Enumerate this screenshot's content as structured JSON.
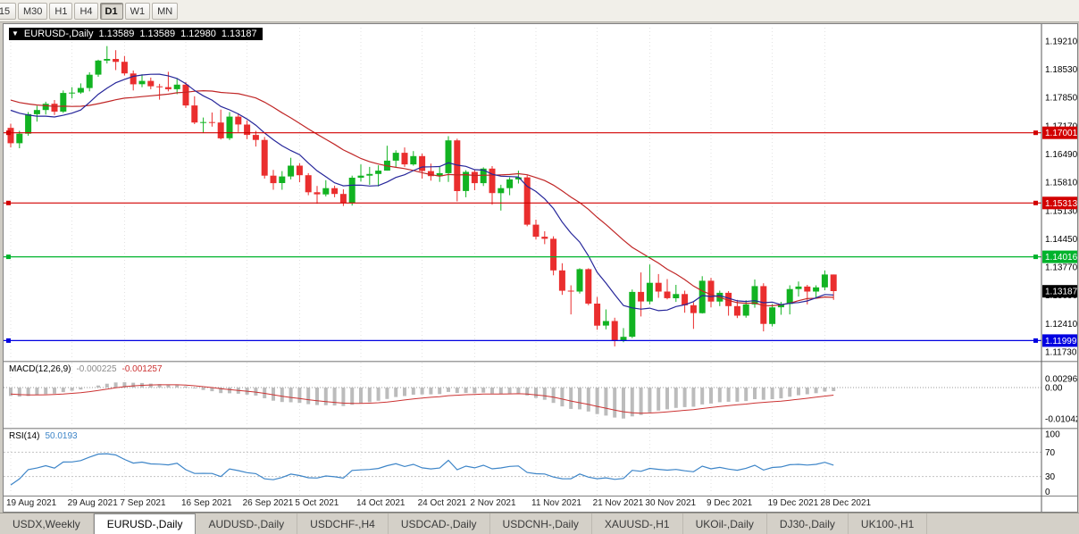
{
  "toolbar": {
    "timeframes": [
      {
        "label": "15",
        "active": false
      },
      {
        "label": "M30",
        "active": false
      },
      {
        "label": "H1",
        "active": false
      },
      {
        "label": "H4",
        "active": false
      },
      {
        "label": "D1",
        "active": true
      },
      {
        "label": "W1",
        "active": false
      },
      {
        "label": "MN",
        "active": false
      }
    ]
  },
  "chart_header": {
    "symbol": "EURUSD-,Daily",
    "open": "1.13589",
    "high": "1.13589",
    "low": "1.12980",
    "close": "1.13187"
  },
  "macd": {
    "name": "MACD(12,26,9)",
    "value_main": "-0.000225",
    "value_signal": "-0.001257",
    "axis_labels": [
      {
        "text": "0.002966",
        "value": 0.002966
      },
      {
        "text": "0.00",
        "value": 0
      },
      {
        "text": "-0.01042",
        "value": -0.01042
      }
    ]
  },
  "rsi": {
    "name": "RSI(14)",
    "value": "50.0193",
    "axis_labels": [
      {
        "text": "100",
        "value": 100
      },
      {
        "text": "70",
        "value": 70
      },
      {
        "text": "30",
        "value": 30
      },
      {
        "text": "0",
        "value": 0
      }
    ],
    "levels": [
      70,
      30
    ]
  },
  "colors": {
    "candle_up": "#12b322",
    "candle_down": "#ea2e2e",
    "ma_fast": "#26269a",
    "ma_slow": "#c02626",
    "macd_hist": "#bcbcbc",
    "macd_signal": "#cc3333",
    "rsi_line": "#3d85c8",
    "grid": "#e2e2e2"
  },
  "chart_data": {
    "type": "candlestick",
    "symbol": "EURUSD-,Daily",
    "y_range": [
      1.11535,
      1.19532
    ],
    "y_axis_labels": [
      "1.19210",
      "1.18530",
      "1.17850",
      "1.17170",
      "1.16490",
      "1.15810",
      "1.15130",
      "1.14450",
      "1.13770",
      "1.13090",
      "1.12410",
      "1.11730"
    ],
    "x_tick_labels": [
      "19 Aug 2021",
      "29 Aug 2021",
      "7 Sep 2021",
      "16 Sep 2021",
      "26 Sep 2021",
      "5 Oct 2021",
      "14 Oct 2021",
      "24 Oct 2021",
      "2 Nov 2021",
      "11 Nov 2021",
      "21 Nov 2021",
      "30 Nov 2021",
      "9 Dec 2021",
      "19 Dec 2021",
      "28 Dec 2021"
    ],
    "x_tick_indices": [
      0,
      7,
      13,
      20,
      27,
      33,
      40,
      47,
      53,
      60,
      67,
      73,
      80,
      87,
      93
    ],
    "levels": [
      {
        "value": 1.17001,
        "label": "1.17001",
        "color": "#d20000"
      },
      {
        "value": 1.15313,
        "label": "1.15313",
        "color": "#d20000"
      },
      {
        "value": 1.14016,
        "label": "1.14016",
        "color": "#00b32c"
      },
      {
        "value": 1.11999,
        "label": "1.11999",
        "color": "#0000e1"
      }
    ],
    "current_price": {
      "value": 1.13187,
      "label": "1.13187",
      "color": "#000000"
    },
    "ma_periods": {
      "fast": 9,
      "slow": 21
    },
    "pre_closes": [
      1.1872,
      1.1866,
      1.1858,
      1.1873,
      1.1862,
      1.185,
      1.1839,
      1.1835,
      1.183,
      1.182,
      1.1812,
      1.1806,
      1.1821,
      1.1818,
      1.181,
      1.18,
      1.1792,
      1.1785,
      1.1807,
      1.1802,
      1.1795,
      1.1788,
      1.178,
      1.177,
      1.1762,
      1.1785,
      1.1779,
      1.1771,
      1.1768,
      1.176,
      1.175,
      1.174
    ],
    "candles_ohlc": [
      [
        1.1712,
        1.1722,
        1.1665,
        1.1675
      ],
      [
        1.1675,
        1.1705,
        1.1663,
        1.1698
      ],
      [
        1.1698,
        1.175,
        1.1693,
        1.1745
      ],
      [
        1.1745,
        1.1765,
        1.1727,
        1.1755
      ],
      [
        1.1755,
        1.1775,
        1.1744,
        1.177
      ],
      [
        1.177,
        1.1779,
        1.1743,
        1.1751
      ],
      [
        1.1751,
        1.1802,
        1.1748,
        1.1796
      ],
      [
        1.1796,
        1.181,
        1.1783,
        1.1797
      ],
      [
        1.1797,
        1.1819,
        1.1794,
        1.1808
      ],
      [
        1.1808,
        1.1846,
        1.18,
        1.184
      ],
      [
        1.184,
        1.1876,
        1.1835,
        1.1874
      ],
      [
        1.1874,
        1.1909,
        1.1867,
        1.1878
      ],
      [
        1.1878,
        1.1899,
        1.1851,
        1.1871
      ],
      [
        1.1871,
        1.1885,
        1.1838,
        1.1843
      ],
      [
        1.1843,
        1.185,
        1.1802,
        1.1817
      ],
      [
        1.1817,
        1.1841,
        1.181,
        1.1825
      ],
      [
        1.1825,
        1.1833,
        1.1805,
        1.1812
      ],
      [
        1.1812,
        1.1818,
        1.178,
        1.181
      ],
      [
        1.181,
        1.1847,
        1.18,
        1.1805
      ],
      [
        1.1805,
        1.1832,
        1.1793,
        1.1816
      ],
      [
        1.1816,
        1.1822,
        1.176,
        1.1766
      ],
      [
        1.1766,
        1.1788,
        1.1721,
        1.1725
      ],
      [
        1.1725,
        1.1737,
        1.17,
        1.1726
      ],
      [
        1.1726,
        1.1749,
        1.1715,
        1.1725
      ],
      [
        1.1725,
        1.1756,
        1.1684,
        1.1687
      ],
      [
        1.1687,
        1.175,
        1.1683,
        1.1739
      ],
      [
        1.1739,
        1.1747,
        1.1702,
        1.172
      ],
      [
        1.172,
        1.173,
        1.1685,
        1.1695
      ],
      [
        1.1695,
        1.1705,
        1.1667,
        1.1683
      ],
      [
        1.1683,
        1.169,
        1.159,
        1.1597
      ],
      [
        1.1597,
        1.1611,
        1.1563,
        1.1579
      ],
      [
        1.1579,
        1.1608,
        1.1563,
        1.1595
      ],
      [
        1.1595,
        1.164,
        1.1588,
        1.1621
      ],
      [
        1.1621,
        1.1627,
        1.1581,
        1.1598
      ],
      [
        1.1598,
        1.1603,
        1.155,
        1.1557
      ],
      [
        1.1557,
        1.1572,
        1.1529,
        1.1552
      ],
      [
        1.1552,
        1.1586,
        1.1547,
        1.1567
      ],
      [
        1.1567,
        1.1573,
        1.1545,
        1.1553
      ],
      [
        1.1553,
        1.1564,
        1.1524,
        1.1531
      ],
      [
        1.1531,
        1.1597,
        1.1525,
        1.1592
      ],
      [
        1.1592,
        1.1624,
        1.1583,
        1.1597
      ],
      [
        1.1597,
        1.1618,
        1.1575,
        1.1601
      ],
      [
        1.1601,
        1.1622,
        1.1571,
        1.1609
      ],
      [
        1.1609,
        1.1669,
        1.1609,
        1.1633
      ],
      [
        1.1633,
        1.1658,
        1.1617,
        1.1652
      ],
      [
        1.1652,
        1.1665,
        1.1618,
        1.1624
      ],
      [
        1.1624,
        1.1656,
        1.1621,
        1.1644
      ],
      [
        1.1644,
        1.165,
        1.159,
        1.1608
      ],
      [
        1.1608,
        1.1626,
        1.1585,
        1.1596
      ],
      [
        1.1596,
        1.1618,
        1.1582,
        1.1603
      ],
      [
        1.1603,
        1.1692,
        1.1582,
        1.1682
      ],
      [
        1.1682,
        1.1686,
        1.1535,
        1.156
      ],
      [
        1.156,
        1.161,
        1.1545,
        1.1606
      ],
      [
        1.1606,
        1.1612,
        1.1562,
        1.1579
      ],
      [
        1.1579,
        1.1617,
        1.1572,
        1.1614
      ],
      [
        1.1614,
        1.162,
        1.1527,
        1.1555
      ],
      [
        1.1555,
        1.1575,
        1.1513,
        1.1567
      ],
      [
        1.1567,
        1.1593,
        1.155,
        1.1588
      ],
      [
        1.1588,
        1.1609,
        1.1578,
        1.1593
      ],
      [
        1.1593,
        1.1598,
        1.1475,
        1.1479
      ],
      [
        1.1479,
        1.1491,
        1.1443,
        1.145
      ],
      [
        1.145,
        1.1463,
        1.1432,
        1.1445
      ],
      [
        1.1445,
        1.1451,
        1.1357,
        1.1369
      ],
      [
        1.1369,
        1.1386,
        1.131,
        1.132
      ],
      [
        1.132,
        1.1333,
        1.1263,
        1.1318
      ],
      [
        1.1318,
        1.1374,
        1.1313,
        1.1372
      ],
      [
        1.1372,
        1.1374,
        1.1285,
        1.1289
      ],
      [
        1.1289,
        1.1305,
        1.1226,
        1.1236
      ],
      [
        1.1236,
        1.1275,
        1.1227,
        1.1247
      ],
      [
        1.1247,
        1.1255,
        1.1186,
        1.1199
      ],
      [
        1.1199,
        1.123,
        1.1196,
        1.1209
      ],
      [
        1.1209,
        1.1323,
        1.1206,
        1.1317
      ],
      [
        1.1317,
        1.1364,
        1.1258,
        1.1294
      ],
      [
        1.1294,
        1.1383,
        1.1287,
        1.1339
      ],
      [
        1.1339,
        1.136,
        1.1303,
        1.1318
      ],
      [
        1.1318,
        1.1348,
        1.1299,
        1.1302
      ],
      [
        1.1302,
        1.1334,
        1.1293,
        1.1312
      ],
      [
        1.1312,
        1.132,
        1.1267,
        1.1285
      ],
      [
        1.1285,
        1.1292,
        1.1228,
        1.1266
      ],
      [
        1.1266,
        1.1355,
        1.1265,
        1.1344
      ],
      [
        1.1344,
        1.1351,
        1.128,
        1.1294
      ],
      [
        1.1294,
        1.132,
        1.1283,
        1.1315
      ],
      [
        1.1315,
        1.1319,
        1.126,
        1.1283
      ],
      [
        1.1283,
        1.1298,
        1.1254,
        1.126
      ],
      [
        1.126,
        1.1297,
        1.1255,
        1.1287
      ],
      [
        1.1287,
        1.1347,
        1.1279,
        1.1331
      ],
      [
        1.1331,
        1.1338,
        1.1222,
        1.124
      ],
      [
        1.124,
        1.1288,
        1.1234,
        1.128
      ],
      [
        1.128,
        1.1293,
        1.1262,
        1.1288
      ],
      [
        1.1288,
        1.1333,
        1.1263,
        1.1324
      ],
      [
        1.1324,
        1.1342,
        1.1306,
        1.133
      ],
      [
        1.133,
        1.1334,
        1.1287,
        1.1318
      ],
      [
        1.1318,
        1.1333,
        1.1304,
        1.1328
      ],
      [
        1.1328,
        1.1369,
        1.1321,
        1.1359
      ],
      [
        1.1359,
        1.1359,
        1.1298,
        1.1319
      ]
    ]
  },
  "tabs": [
    {
      "label": "USDX,Weekly",
      "active": false
    },
    {
      "label": "EURUSD-,Daily",
      "active": true
    },
    {
      "label": "AUDUSD-,Daily",
      "active": false
    },
    {
      "label": "USDCHF-,H4",
      "active": false
    },
    {
      "label": "USDCAD-,Daily",
      "active": false
    },
    {
      "label": "USDCNH-,Daily",
      "active": false
    },
    {
      "label": "XAUUSD-,H1",
      "active": false
    },
    {
      "label": "UKOil-,Daily",
      "active": false
    },
    {
      "label": "DJ30-,Daily",
      "active": false
    },
    {
      "label": "UK100-,H1",
      "active": false
    }
  ]
}
